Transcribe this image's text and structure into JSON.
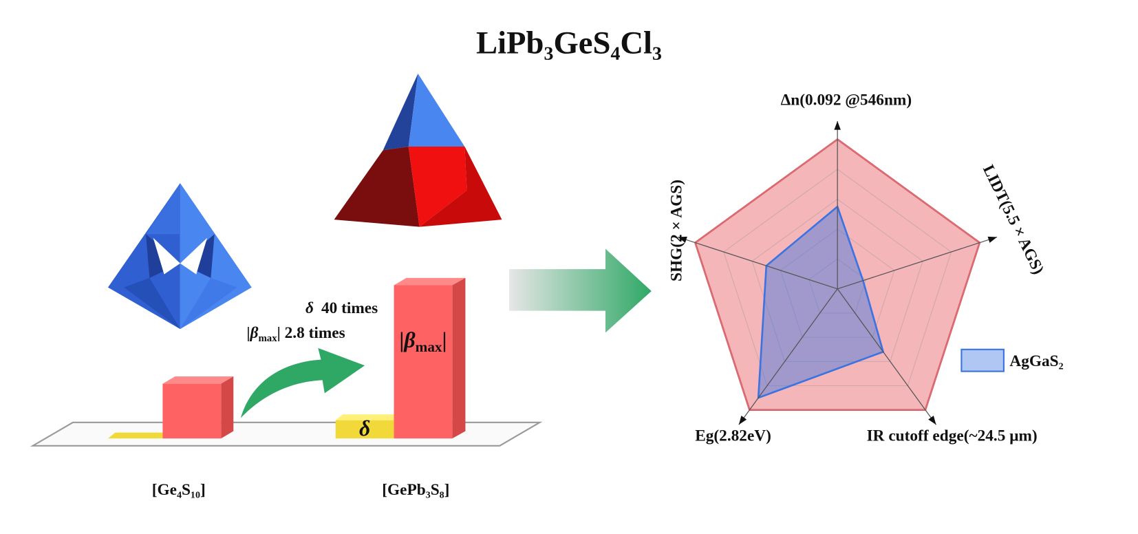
{
  "header": {
    "title": "LiPb₃GeS₄Cl₃"
  },
  "structures": {
    "left_label": "[Ge₄S₁₀]",
    "right_label": "[GePb₃S₈]",
    "delta_symbol": "δ",
    "delta_change": "40 times",
    "beta_symbol": "β",
    "beta_subscript": "max",
    "beta_change": "2.8 times"
  },
  "chart_data": {
    "type": "radar",
    "categories": [
      "Δn(0.092 @546nm)",
      "LIDT(5.5 × AGS)",
      "IR cutoff edge(~24.5 μm)",
      "Eg(2.82eV)",
      "SHG(2 × AGS)"
    ],
    "rlim": [
      0,
      1
    ],
    "rticks": [
      0.2,
      0.4,
      0.6,
      0.8,
      1
    ],
    "grid": true,
    "legend": "right",
    "series": [
      {
        "color": "#e8505a",
        "values": [
          1,
          1,
          1,
          1,
          1
        ]
      },
      {
        "name": "AgGaS₂",
        "color": "#3b73e0",
        "values": [
          0.55,
          0.18,
          0.52,
          0.9,
          0.5
        ]
      }
    ]
  }
}
